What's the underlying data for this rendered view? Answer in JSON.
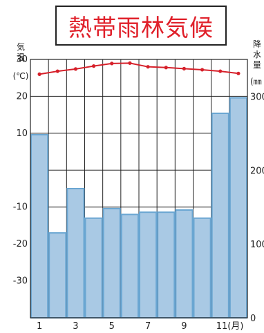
{
  "chart_data": {
    "type": "bar+line",
    "title": "熱帯雨林気候",
    "x_tick_labels": [
      "1",
      "3",
      "5",
      "7",
      "9",
      "11(月)"
    ],
    "months": [
      1,
      2,
      3,
      4,
      5,
      6,
      7,
      8,
      9,
      10,
      11,
      12
    ],
    "left_axis": {
      "label_chars": [
        "気",
        "温"
      ],
      "unit": "(℃)",
      "ticks": [
        "30",
        "20",
        "10",
        "-10",
        "-20",
        "-30"
      ],
      "ylim": [
        -40,
        30
      ]
    },
    "right_axis": {
      "label_chars": [
        "降",
        "水",
        "量"
      ],
      "unit": "(㎜",
      "ticks": [
        "300",
        "200",
        "100",
        "0"
      ],
      "ylim": [
        0,
        350
      ]
    },
    "series": [
      {
        "type": "bar",
        "axis": "right",
        "values": [
          248,
          115,
          175,
          135,
          148,
          140,
          143,
          143,
          146,
          135,
          277,
          298
        ]
      },
      {
        "type": "line",
        "axis": "left",
        "values": [
          26.0,
          26.8,
          27.4,
          28.2,
          28.9,
          29.0,
          28.0,
          27.8,
          27.5,
          27.2,
          26.8,
          26.2
        ]
      }
    ],
    "colors": {
      "bar_fill": "#a9c9e4",
      "bar_stroke": "#6aa6d2",
      "line": "#d6202a",
      "title": "#e0202a"
    },
    "grid": true
  }
}
